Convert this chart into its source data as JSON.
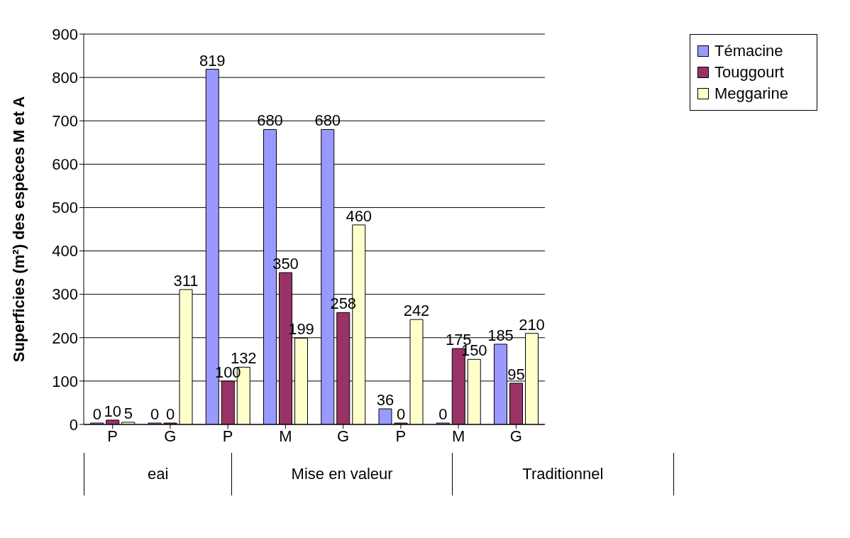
{
  "chart_data": {
    "type": "bar",
    "ylabel": "Superficies (m²) des espèces M et A",
    "categories": [
      "P",
      "G",
      "P",
      "M",
      "G",
      "P",
      "M",
      "G"
    ],
    "series": [
      {
        "name": "Témacine",
        "color": "#9999ff",
        "values": [
          0,
          0,
          819,
          680,
          680,
          36,
          0,
          185
        ]
      },
      {
        "name": "Touggourt",
        "color": "#993366",
        "values": [
          10,
          0,
          100,
          350,
          258,
          0,
          175,
          95
        ]
      },
      {
        "name": "Meggarine",
        "color": "#ffffcc",
        "values": [
          5,
          311,
          132,
          199,
          460,
          242,
          150,
          210
        ]
      }
    ],
    "annotations": [
      "eai",
      "Mise en valeur",
      "Traditionnel"
    ],
    "ylim": [
      0,
      900
    ],
    "yticks": [
      0,
      100,
      200,
      300,
      400,
      500,
      600,
      700,
      800,
      900
    ],
    "grid": "y",
    "legend": "top right",
    "data_labels": true
  }
}
